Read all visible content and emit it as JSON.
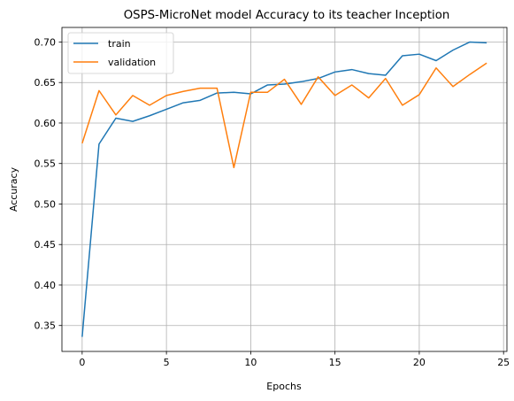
{
  "chart_data": {
    "type": "line",
    "title": "OSPS-MicroNet model Accuracy to its teacher Inception",
    "xlabel": "Epochs",
    "ylabel": "Accuracy",
    "xlim": [
      -1.2,
      25.2
    ],
    "ylim": [
      0.318,
      0.718
    ],
    "xticks": [
      0,
      5,
      10,
      15,
      20,
      25
    ],
    "yticks": [
      0.35,
      0.4,
      0.45,
      0.5,
      0.55,
      0.6,
      0.65,
      0.7
    ],
    "grid": true,
    "legend_position": "top-left",
    "x": [
      0,
      1,
      2,
      3,
      4,
      5,
      6,
      7,
      8,
      9,
      10,
      11,
      12,
      13,
      14,
      15,
      16,
      17,
      18,
      19,
      20,
      21,
      22,
      23,
      24
    ],
    "series": [
      {
        "name": "train",
        "color": "#1f77b4",
        "values": [
          0.336,
          0.574,
          0.606,
          0.602,
          0.609,
          0.617,
          0.625,
          0.628,
          0.637,
          0.638,
          0.636,
          0.647,
          0.648,
          0.651,
          0.655,
          0.663,
          0.666,
          0.661,
          0.659,
          0.683,
          0.685,
          0.677,
          0.69,
          0.7,
          0.699
        ]
      },
      {
        "name": "validation",
        "color": "#ff7f0e",
        "values": [
          0.575,
          0.64,
          0.61,
          0.634,
          0.622,
          0.634,
          0.639,
          0.643,
          0.643,
          0.545,
          0.638,
          0.638,
          0.654,
          0.623,
          0.657,
          0.634,
          0.647,
          0.631,
          0.655,
          0.622,
          0.635,
          0.668,
          0.645,
          0.66,
          0.674
        ]
      }
    ]
  }
}
